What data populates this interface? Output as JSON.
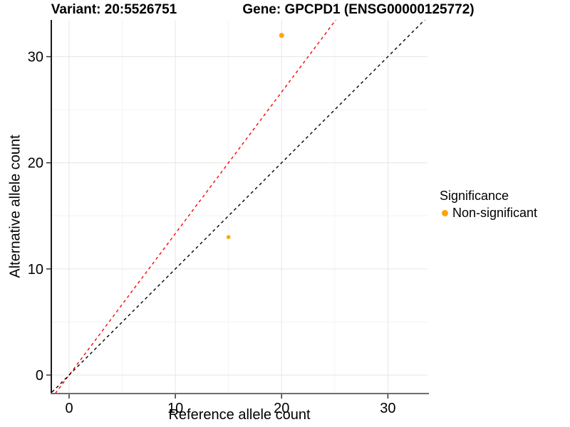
{
  "title": {
    "variant": "Variant: 20:5526751",
    "gene": "Gene: GPCPD1 (ENSG00000125772)"
  },
  "axes": {
    "x_label": "Reference allele count",
    "y_label": "Alternative allele count"
  },
  "legend": {
    "title": "Significance",
    "items": [
      {
        "label": "Non-significant",
        "color": "#FFA500",
        "marker": "circle-icon"
      }
    ]
  },
  "colors": {
    "point_orange": "#FFA500",
    "fitted_line_red": "#FF0000",
    "identity_line_black": "#000000",
    "major_grid": "#E6E6E6",
    "minor_grid": "#F3F3F3",
    "left_axis": "#1a1a1a",
    "bottom_axis": "#6e6e6e",
    "tick_mark": "#333333",
    "tick_text": "#000000"
  },
  "chart_data": {
    "type": "scatter",
    "title": "Variant: 20:5526751   Gene: GPCPD1 (ENSG00000125772)",
    "xlabel": "Reference allele count",
    "ylabel": "Alternative allele count",
    "xlim": [
      -1.7,
      33.8
    ],
    "ylim": [
      -1.7,
      33.5
    ],
    "xticks": [
      0,
      10,
      20,
      30
    ],
    "yticks": [
      0,
      10,
      20,
      30
    ],
    "minor_gridlines": [
      5,
      15,
      25
    ],
    "grid": "major+minor",
    "legend_position": "right",
    "legend_title": "Significance",
    "series": [
      {
        "name": "Non-significant",
        "color": "#FFA500",
        "points": [
          {
            "x": 20,
            "y": 32,
            "r": 3.5
          },
          {
            "x": 15,
            "y": 13,
            "r": 2.8
          }
        ]
      }
    ],
    "reference_lines": [
      {
        "name": "fitted-ratio-line",
        "slope": 1.3333,
        "intercept": 0,
        "color": "#FF0000",
        "style": "dashed"
      },
      {
        "name": "identity-line",
        "slope": 1.0,
        "intercept": 0,
        "color": "#000000",
        "style": "dashed"
      }
    ]
  }
}
